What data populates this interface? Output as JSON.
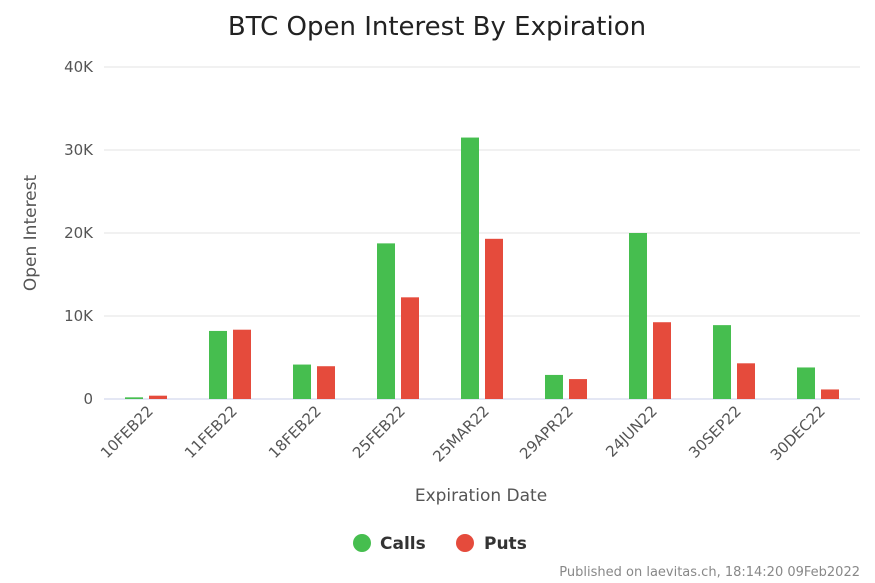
{
  "chart_data": {
    "type": "bar",
    "title": "BTC Open Interest By Expiration",
    "xlabel": "Expiration Date",
    "ylabel": "Open Interest",
    "categories": [
      "10FEB22",
      "11FEB22",
      "18FEB22",
      "25FEB22",
      "25MAR22",
      "29APR22",
      "24JUN22",
      "30SEP22",
      "30DEC22"
    ],
    "series": [
      {
        "name": "Calls",
        "color": "#46be4f",
        "values": [
          200,
          8200,
          4150,
          18750,
          31500,
          2900,
          20000,
          8900,
          3800
        ]
      },
      {
        "name": "Puts",
        "color": "#e54b3c",
        "values": [
          400,
          8350,
          3950,
          12250,
          19300,
          2400,
          9250,
          4300,
          1150
        ]
      }
    ],
    "ylim": [
      0,
      40000
    ],
    "yticks": [
      0,
      10000,
      20000,
      30000,
      40000
    ],
    "ytick_labels": [
      "0",
      "10K",
      "20K",
      "30K",
      "40K"
    ],
    "grid": true,
    "legend": "bottom-center"
  },
  "credit": "Published on laevitas.ch, 18:14:20 09Feb2022"
}
